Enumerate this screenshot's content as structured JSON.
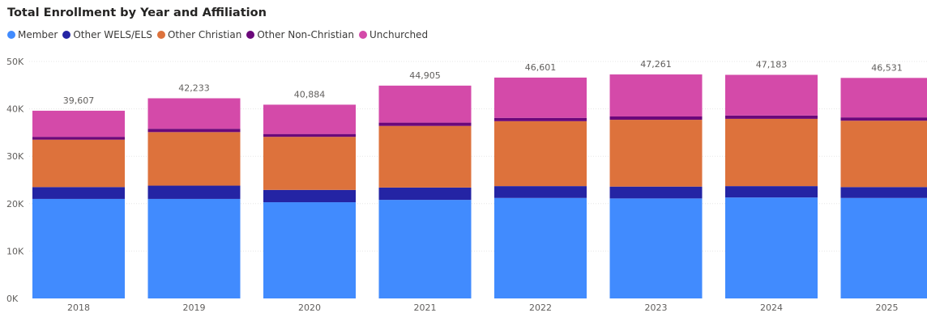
{
  "chart_data": {
    "type": "bar",
    "stacked": true,
    "title": "Total Enrollment by Year and Affiliation",
    "xlabel": "",
    "ylabel": "",
    "ylim": [
      0,
      50000
    ],
    "yticks": [
      {
        "value": 0,
        "label": "0K"
      },
      {
        "value": 10000,
        "label": "10K"
      },
      {
        "value": 20000,
        "label": "20K"
      },
      {
        "value": 30000,
        "label": "30K"
      },
      {
        "value": 40000,
        "label": "40K"
      },
      {
        "value": 50000,
        "label": "50K"
      }
    ],
    "grid": true,
    "legend_position": "top-left",
    "categories": [
      "2018",
      "2019",
      "2020",
      "2021",
      "2022",
      "2023",
      "2024",
      "2025"
    ],
    "series": [
      {
        "name": "Member",
        "color": "#418BFE",
        "values": [
          21000,
          21000,
          20300,
          20800,
          21200,
          21100,
          21300,
          21200
        ]
      },
      {
        "name": "Other WELS/ELS",
        "color": "#2424A4",
        "values": [
          2500,
          2800,
          2600,
          2600,
          2500,
          2500,
          2400,
          2300
        ]
      },
      {
        "name": "Other Christian",
        "color": "#DD723C",
        "values": [
          10000,
          11300,
          11200,
          13000,
          13700,
          14100,
          14200,
          14000
        ]
      },
      {
        "name": "Other Non-Christian",
        "color": "#6B087A",
        "values": [
          600,
          700,
          600,
          700,
          700,
          700,
          700,
          700
        ]
      },
      {
        "name": "Unchurched",
        "color": "#D44AA9",
        "values": [
          5507,
          6433,
          6184,
          7805,
          8501,
          8861,
          8583,
          8331
        ]
      }
    ],
    "totals": [
      "39,607",
      "42,233",
      "40,884",
      "44,905",
      "46,601",
      "47,261",
      "47,183",
      "46,531"
    ]
  }
}
